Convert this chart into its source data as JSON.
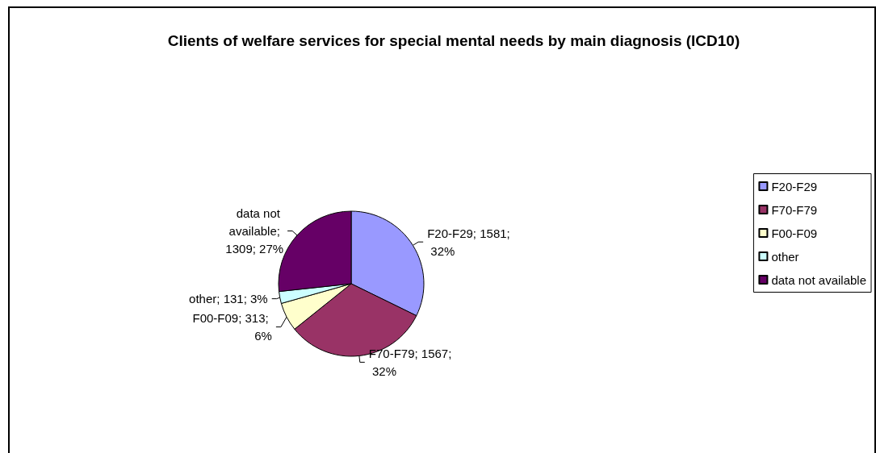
{
  "chart_data": {
    "type": "pie",
    "title": "Clients of welfare services for special mental needs by main diagnosis (ICD10)",
    "categories": [
      "F20-F29",
      "F70-F79",
      "F00-F09",
      "other",
      "data not available"
    ],
    "values": [
      1581,
      1567,
      313,
      131,
      1309
    ],
    "colors": [
      "#9999ff",
      "#993366",
      "#ffffcc",
      "#ccffff",
      "#660066"
    ],
    "value_labels": [
      "F20-F29; 1581; 32%",
      "F70-F79; 1567; 32%",
      "F00-F09; 313; 6%",
      "other; 131; 3%",
      "data not available; 1309; 27%"
    ],
    "legend": "right"
  }
}
